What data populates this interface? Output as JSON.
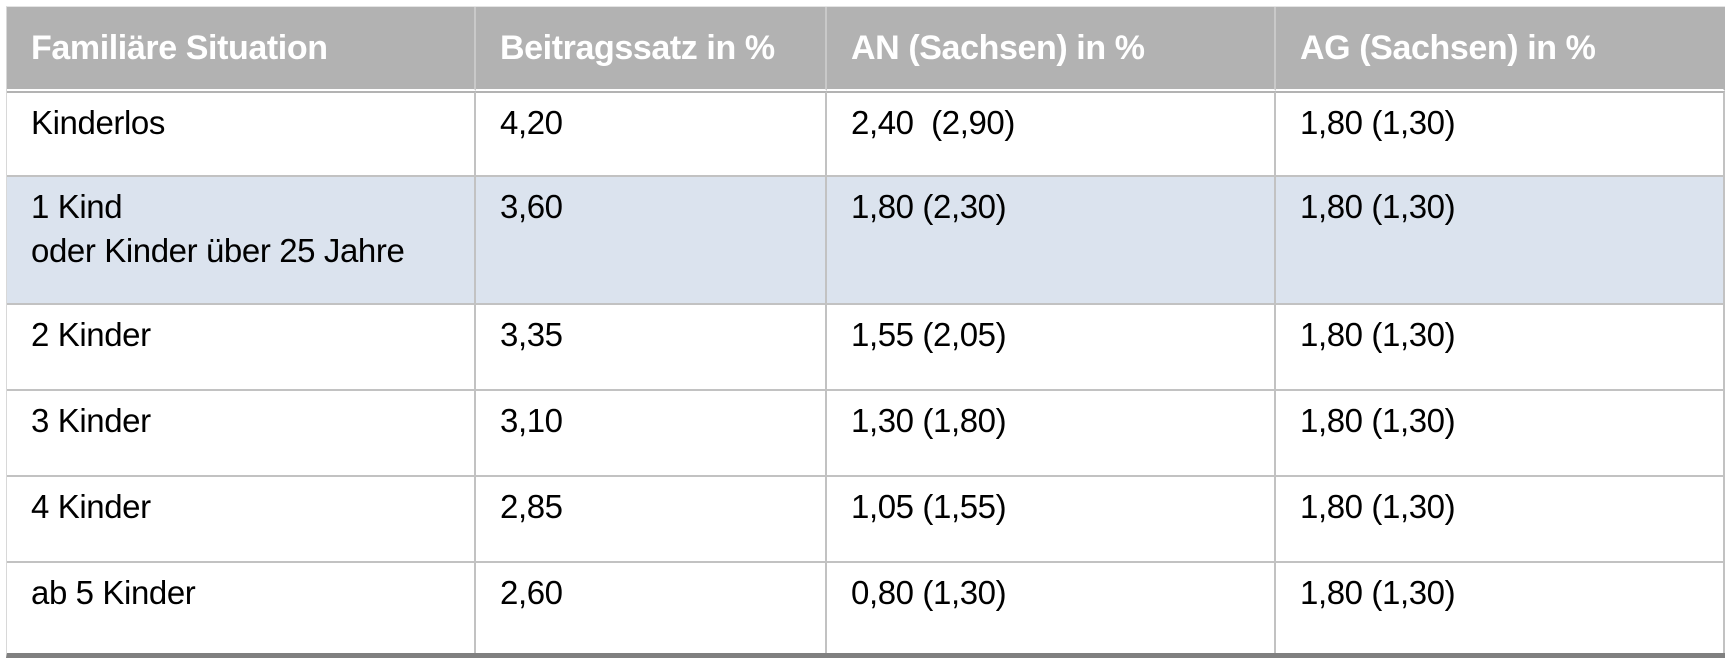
{
  "chart_data": {
    "type": "table",
    "columns": [
      "Familiäre Situation",
      "Beitragssatz in %",
      "AN (Sachsen) in %",
      "AG (Sachsen) in %"
    ],
    "rows": [
      [
        "Kinderlos",
        "4,20",
        "2,40  (2,90)",
        "1,80 (1,30)"
      ],
      [
        "1 Kind\noder Kinder über 25 Jahre",
        "3,60",
        "1,80 (2,30)",
        "1,80 (1,30)"
      ],
      [
        "2 Kinder",
        "3,35",
        "1,55 (2,05)",
        "1,80 (1,30)"
      ],
      [
        "3 Kinder",
        "3,10",
        "1,30 (1,80)",
        "1,80 (1,30)"
      ],
      [
        "4 Kinder",
        "2,85",
        "1,05 (1,55)",
        "1,80 (1,30)"
      ],
      [
        "ab 5 Kinder",
        "2,60",
        "0,80 (1,30)",
        "1,80 (1,30)"
      ]
    ],
    "highlighted_row_index": 1
  },
  "colors": {
    "header_bg": "#b2b2b2",
    "header_text": "#ffffff",
    "body_text": "#000000",
    "highlight_row_bg": "#dbe3ee",
    "grid_border": "#c2c2c2",
    "header_divider": "#c9c9c9",
    "bottom_border": "#808080"
  }
}
